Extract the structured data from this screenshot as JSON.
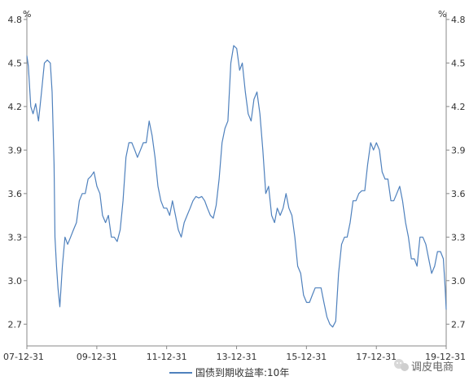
{
  "chart_data": {
    "type": "line",
    "unit_left": "%",
    "unit_right": "%",
    "ylim": [
      2.55,
      4.85
    ],
    "yticks": [
      2.7,
      3.0,
      3.3,
      3.6,
      3.9,
      4.2,
      4.5,
      4.8
    ],
    "ytick_labels": [
      "2.7",
      "3.0",
      "3.3",
      "3.6",
      "3.9",
      "4.2",
      "4.5",
      "4.8"
    ],
    "xlim": [
      "2007-12-31",
      "2019-12-31"
    ],
    "xticks": [
      "2007-12-31",
      "2009-12-31",
      "2011-12-31",
      "2013-12-31",
      "2015-12-31",
      "2017-12-31",
      "2019-12-31"
    ],
    "xtick_labels": [
      "07-12-31",
      "09-12-31",
      "11-12-31",
      "13-12-31",
      "15-12-31",
      "17-12-31",
      "19-12-31"
    ],
    "grid": false,
    "legend_position": "bottom",
    "series": [
      {
        "name": "国债到期收益率:10年",
        "color": "#4f81bd",
        "points": [
          [
            "2007-12-31",
            4.55
          ],
          [
            "2008-01-15",
            4.48
          ],
          [
            "2008-02-10",
            4.2
          ],
          [
            "2008-03-05",
            4.15
          ],
          [
            "2008-04-01",
            4.22
          ],
          [
            "2008-05-01",
            4.1
          ],
          [
            "2008-06-01",
            4.3
          ],
          [
            "2008-07-01",
            4.5
          ],
          [
            "2008-08-01",
            4.52
          ],
          [
            "2008-09-01",
            4.5
          ],
          [
            "2008-09-20",
            4.3
          ],
          [
            "2008-10-10",
            3.8
          ],
          [
            "2008-10-20",
            3.3
          ],
          [
            "2008-11-05",
            3.1
          ],
          [
            "2008-11-20",
            2.95
          ],
          [
            "2008-12-10",
            2.82
          ],
          [
            "2009-01-05",
            3.1
          ],
          [
            "2009-02-01",
            3.3
          ],
          [
            "2009-03-01",
            3.25
          ],
          [
            "2009-04-01",
            3.3
          ],
          [
            "2009-05-01",
            3.35
          ],
          [
            "2009-06-01",
            3.4
          ],
          [
            "2009-07-01",
            3.55
          ],
          [
            "2009-08-01",
            3.6
          ],
          [
            "2009-09-01",
            3.6
          ],
          [
            "2009-10-01",
            3.7
          ],
          [
            "2009-11-01",
            3.72
          ],
          [
            "2009-12-01",
            3.75
          ],
          [
            "2010-01-01",
            3.65
          ],
          [
            "2010-02-01",
            3.6
          ],
          [
            "2010-03-01",
            3.45
          ],
          [
            "2010-04-01",
            3.4
          ],
          [
            "2010-05-01",
            3.45
          ],
          [
            "2010-06-01",
            3.3
          ],
          [
            "2010-07-01",
            3.3
          ],
          [
            "2010-08-01",
            3.27
          ],
          [
            "2010-09-01",
            3.35
          ],
          [
            "2010-10-01",
            3.55
          ],
          [
            "2010-11-01",
            3.85
          ],
          [
            "2010-12-01",
            3.95
          ],
          [
            "2011-01-01",
            3.95
          ],
          [
            "2011-02-01",
            3.9
          ],
          [
            "2011-03-01",
            3.85
          ],
          [
            "2011-04-01",
            3.9
          ],
          [
            "2011-05-01",
            3.95
          ],
          [
            "2011-06-01",
            3.95
          ],
          [
            "2011-07-01",
            4.1
          ],
          [
            "2011-08-01",
            4.0
          ],
          [
            "2011-09-01",
            3.85
          ],
          [
            "2011-10-01",
            3.65
          ],
          [
            "2011-11-01",
            3.55
          ],
          [
            "2011-12-01",
            3.5
          ],
          [
            "2012-01-01",
            3.5
          ],
          [
            "2012-02-01",
            3.45
          ],
          [
            "2012-03-01",
            3.55
          ],
          [
            "2012-04-01",
            3.45
          ],
          [
            "2012-05-01",
            3.35
          ],
          [
            "2012-06-01",
            3.3
          ],
          [
            "2012-07-01",
            3.4
          ],
          [
            "2012-08-01",
            3.45
          ],
          [
            "2012-09-01",
            3.5
          ],
          [
            "2012-10-01",
            3.55
          ],
          [
            "2012-11-01",
            3.58
          ],
          [
            "2012-12-01",
            3.57
          ],
          [
            "2013-01-01",
            3.58
          ],
          [
            "2013-02-01",
            3.55
          ],
          [
            "2013-03-01",
            3.5
          ],
          [
            "2013-04-01",
            3.45
          ],
          [
            "2013-05-01",
            3.43
          ],
          [
            "2013-06-01",
            3.52
          ],
          [
            "2013-07-01",
            3.7
          ],
          [
            "2013-08-01",
            3.95
          ],
          [
            "2013-09-01",
            4.05
          ],
          [
            "2013-10-01",
            4.1
          ],
          [
            "2013-11-01",
            4.5
          ],
          [
            "2013-12-01",
            4.62
          ],
          [
            "2014-01-01",
            4.6
          ],
          [
            "2014-02-01",
            4.45
          ],
          [
            "2014-03-01",
            4.5
          ],
          [
            "2014-04-01",
            4.3
          ],
          [
            "2014-05-01",
            4.15
          ],
          [
            "2014-06-01",
            4.1
          ],
          [
            "2014-07-01",
            4.25
          ],
          [
            "2014-08-01",
            4.3
          ],
          [
            "2014-09-01",
            4.15
          ],
          [
            "2014-10-01",
            3.9
          ],
          [
            "2014-11-01",
            3.6
          ],
          [
            "2014-12-01",
            3.65
          ],
          [
            "2015-01-01",
            3.45
          ],
          [
            "2015-02-01",
            3.4
          ],
          [
            "2015-03-01",
            3.5
          ],
          [
            "2015-04-01",
            3.45
          ],
          [
            "2015-05-01",
            3.5
          ],
          [
            "2015-06-01",
            3.6
          ],
          [
            "2015-07-01",
            3.5
          ],
          [
            "2015-08-01",
            3.45
          ],
          [
            "2015-09-01",
            3.3
          ],
          [
            "2015-10-01",
            3.1
          ],
          [
            "2015-11-01",
            3.05
          ],
          [
            "2015-12-01",
            2.9
          ],
          [
            "2016-01-01",
            2.85
          ],
          [
            "2016-02-01",
            2.85
          ],
          [
            "2016-03-01",
            2.9
          ],
          [
            "2016-04-01",
            2.95
          ],
          [
            "2016-05-01",
            2.95
          ],
          [
            "2016-06-01",
            2.95
          ],
          [
            "2016-07-01",
            2.85
          ],
          [
            "2016-08-01",
            2.75
          ],
          [
            "2016-09-01",
            2.7
          ],
          [
            "2016-10-01",
            2.68
          ],
          [
            "2016-11-01",
            2.72
          ],
          [
            "2016-12-01",
            3.05
          ],
          [
            "2017-01-01",
            3.25
          ],
          [
            "2017-02-01",
            3.3
          ],
          [
            "2017-03-01",
            3.3
          ],
          [
            "2017-04-01",
            3.4
          ],
          [
            "2017-05-01",
            3.55
          ],
          [
            "2017-06-01",
            3.55
          ],
          [
            "2017-07-01",
            3.6
          ],
          [
            "2017-08-01",
            3.62
          ],
          [
            "2017-09-01",
            3.62
          ],
          [
            "2017-10-01",
            3.8
          ],
          [
            "2017-11-01",
            3.95
          ],
          [
            "2017-12-01",
            3.9
          ],
          [
            "2018-01-01",
            3.95
          ],
          [
            "2018-02-01",
            3.9
          ],
          [
            "2018-03-01",
            3.75
          ],
          [
            "2018-04-01",
            3.7
          ],
          [
            "2018-05-01",
            3.7
          ],
          [
            "2018-06-01",
            3.55
          ],
          [
            "2018-07-01",
            3.55
          ],
          [
            "2018-08-01",
            3.6
          ],
          [
            "2018-09-01",
            3.65
          ],
          [
            "2018-10-01",
            3.55
          ],
          [
            "2018-11-01",
            3.4
          ],
          [
            "2018-12-01",
            3.3
          ],
          [
            "2019-01-01",
            3.15
          ],
          [
            "2019-02-01",
            3.15
          ],
          [
            "2019-03-01",
            3.1
          ],
          [
            "2019-04-01",
            3.3
          ],
          [
            "2019-05-01",
            3.3
          ],
          [
            "2019-06-01",
            3.25
          ],
          [
            "2019-07-01",
            3.15
          ],
          [
            "2019-08-01",
            3.05
          ],
          [
            "2019-09-01",
            3.1
          ],
          [
            "2019-10-01",
            3.2
          ],
          [
            "2019-11-01",
            3.2
          ],
          [
            "2019-12-01",
            3.15
          ],
          [
            "2019-12-20",
            2.95
          ],
          [
            "2019-12-31",
            2.8
          ]
        ]
      }
    ]
  },
  "legend": {
    "label": "国债到期收益率:10年",
    "color": "#4f81bd"
  },
  "watermark": {
    "text": "调皮电商",
    "icon": "wechat-icon"
  },
  "colors": {
    "axis": "#888888",
    "line": "#4f81bd",
    "text": "#333333"
  }
}
